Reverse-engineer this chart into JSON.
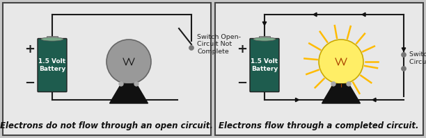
{
  "fig_bg": "#c8c8c8",
  "panel_bg": "#e8e8e8",
  "panel_border": "#444444",
  "battery_color": "#1e5c4e",
  "battery_text": "1.5 Volt\nBattery",
  "battery_text_color": "#ffffff",
  "wire_color": "#1a1a1a",
  "caption_left": "Electrons do not flow through an open circuit.",
  "caption_right": "Electrons flow through a completed circuit.",
  "caption_fontsize": 8.5,
  "label_left": "Switch Open-\nCircuit Not\nComplete",
  "label_right": "Switch Closed-\nCircuit Complete",
  "bulb_off_color": "#999999",
  "bulb_off_edge": "#666666",
  "bulb_on_color": "#ffee66",
  "bulb_on_edge": "#ccaa00",
  "ray_color": "#ffbb00",
  "filament_color": "#111111",
  "base_color": "#111111",
  "arrow_color": "#111111",
  "plus_minus_color": "#222222",
  "switch_circle_color": "#777777"
}
